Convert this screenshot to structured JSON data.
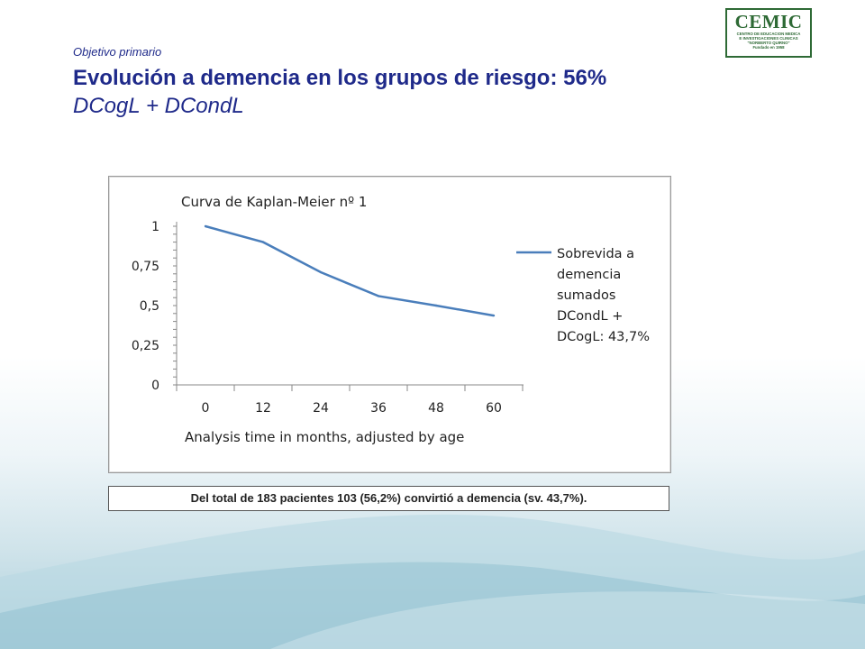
{
  "header": {
    "subtitle": "Objetivo primario",
    "title": "Evolución a demencia en los grupos de riesgo: 56%",
    "title_line2": "DCogL + DCondL"
  },
  "logo": {
    "name": "CEMIC",
    "line1": "CENTRO DE EDUCACION MEDICA",
    "line2": "E INVESTIGACIONES CLINICAS",
    "line3": "\"NORBERTO QUIRNO\"",
    "line4": "Fundado en 1958"
  },
  "chart_data": {
    "type": "line",
    "title": "Curva de Kaplan-Meier nº 1",
    "xlabel": "Analysis time in months, adjusted by age",
    "ylabel": "",
    "x": [
      0,
      12,
      24,
      36,
      48,
      60
    ],
    "x_tick_labels": [
      "0",
      "12",
      "24",
      "36",
      "48",
      "60"
    ],
    "y_tick_labels": [
      "0",
      "0,25",
      "0,5",
      "0,75",
      "1"
    ],
    "y_ticks": [
      0,
      0.25,
      0.5,
      0.75,
      1
    ],
    "xlim": [
      0,
      60
    ],
    "ylim": [
      0,
      1
    ],
    "series": [
      {
        "name": "Sobrevida a demencia sumados DCondL + DCogL: 43,7%",
        "name_lines": [
          "Sobrevida a",
          "demencia",
          "sumados",
          "DCondL +",
          "DCogL: 43,7%"
        ],
        "values": [
          1.0,
          0.9,
          0.71,
          0.56,
          0.5,
          0.437
        ],
        "color": "#4a7ebb"
      }
    ],
    "legend_position": "right",
    "grid": false
  },
  "caption": {
    "text": "Del total de 183 pacientes 103 (56,2%) convirtió a demencia (sv. 43,7%)."
  }
}
